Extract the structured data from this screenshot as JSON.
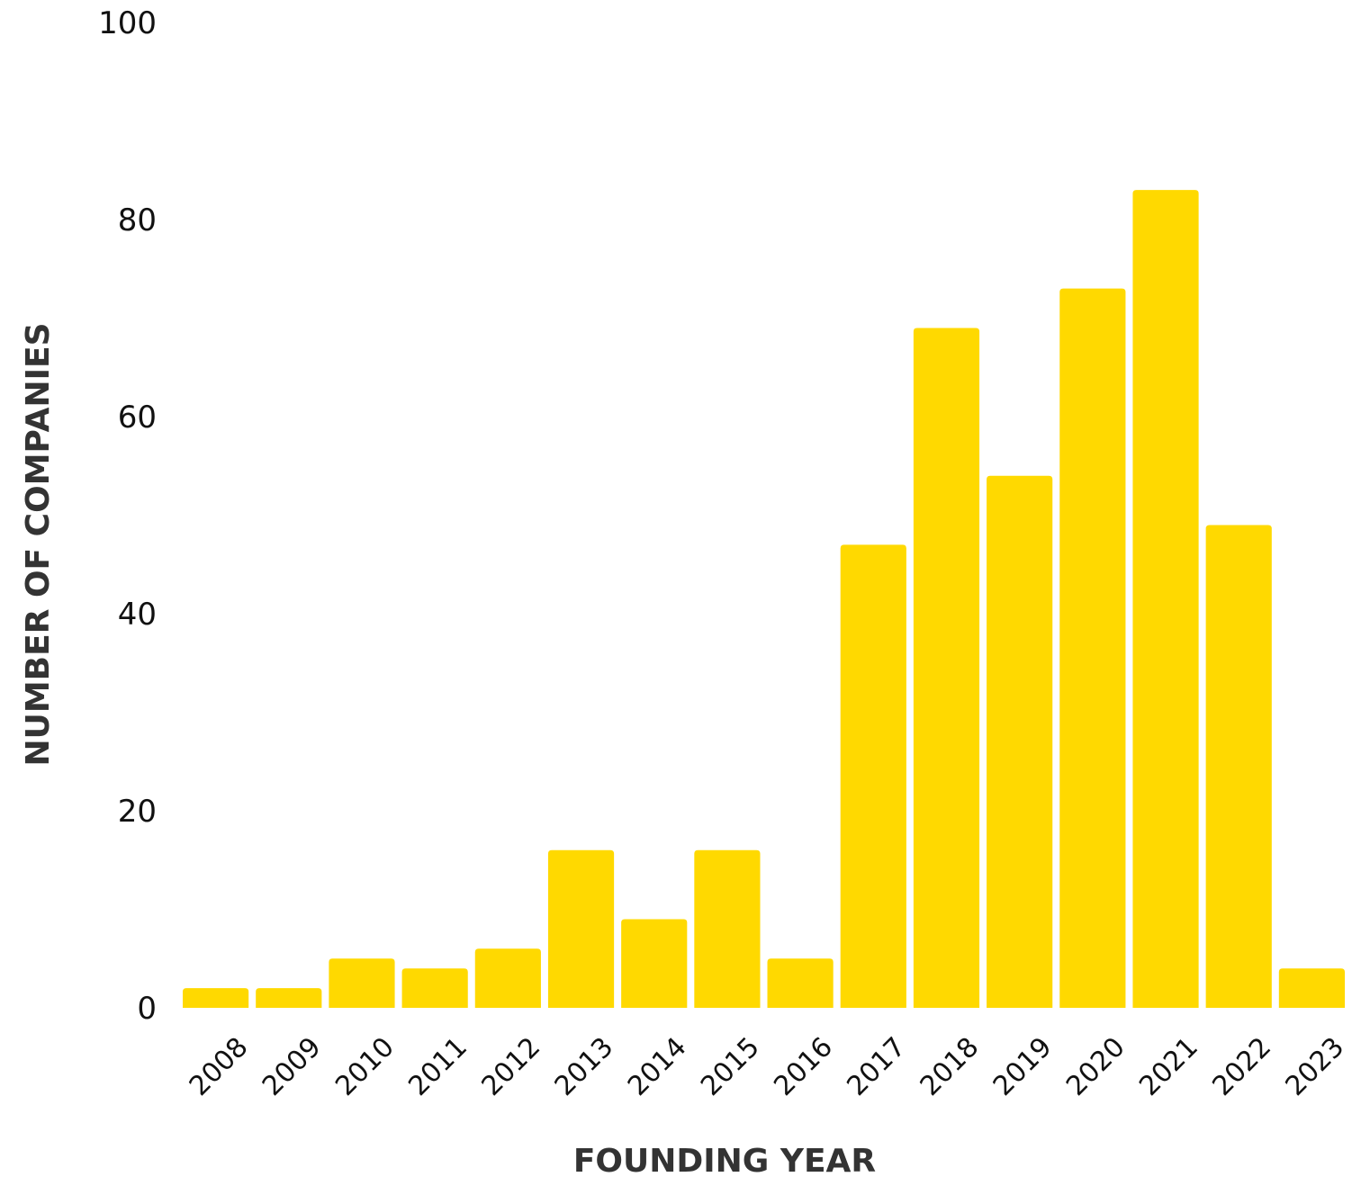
{
  "chart_data": {
    "type": "bar",
    "xlabel": "FOUNDING YEAR",
    "ylabel": "NUMBER OF COMPANIES",
    "categories": [
      "2008",
      "2009",
      "2010",
      "2011",
      "2012",
      "2013",
      "2014",
      "2015",
      "2016",
      "2017",
      "2018",
      "2019",
      "2020",
      "2021",
      "2022",
      "2023"
    ],
    "values": [
      2,
      2,
      5,
      4,
      6,
      16,
      9,
      16,
      5,
      47,
      69,
      54,
      73,
      83,
      49,
      4
    ],
    "ylim": [
      0,
      100
    ],
    "yticks": [
      "0",
      "20",
      "40",
      "60",
      "80",
      "100"
    ],
    "grid": false,
    "bar_color": "#FFD900"
  }
}
